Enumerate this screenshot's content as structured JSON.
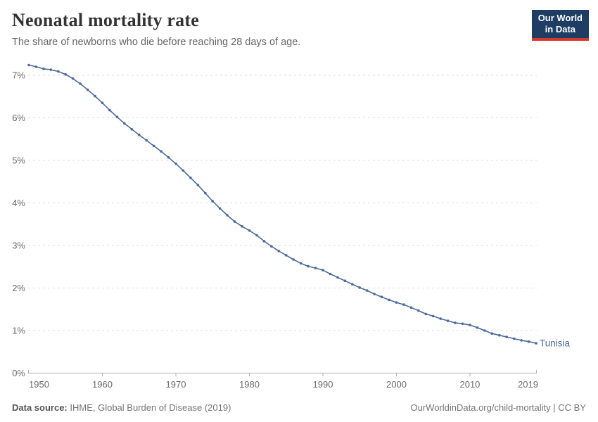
{
  "header": {
    "title": "Neonatal mortality rate",
    "subtitle": "The share of newborns who die before reaching 28 days of age.",
    "logo": {
      "line1": "Our World",
      "line2": "in Data"
    }
  },
  "chart_data": {
    "type": "line",
    "title": "Neonatal mortality rate",
    "xlabel": "",
    "ylabel": "",
    "grid": "horizontal-dashed",
    "legend_position": "end-of-line-label",
    "xlim": [
      1950,
      2019
    ],
    "ylim_percent": [
      0,
      7.45
    ],
    "x_ticks": [
      1950,
      1960,
      1970,
      1980,
      1990,
      2000,
      2010,
      2019
    ],
    "y_ticks": [
      0,
      1,
      2,
      3,
      4,
      5,
      6,
      7
    ],
    "y_tick_suffix": "%",
    "series": [
      {
        "name": "Tunisia",
        "end_label": "Tunisia",
        "color": "#4C6A9C",
        "years": [
          1950,
          1951,
          1952,
          1953,
          1954,
          1955,
          1956,
          1957,
          1958,
          1959,
          1960,
          1961,
          1962,
          1963,
          1964,
          1965,
          1966,
          1967,
          1968,
          1969,
          1970,
          1971,
          1972,
          1973,
          1974,
          1975,
          1976,
          1977,
          1978,
          1979,
          1980,
          1981,
          1982,
          1983,
          1984,
          1985,
          1986,
          1987,
          1988,
          1989,
          1990,
          1991,
          1992,
          1993,
          1994,
          1995,
          1996,
          1997,
          1998,
          1999,
          2000,
          2001,
          2002,
          2003,
          2004,
          2005,
          2006,
          2007,
          2008,
          2009,
          2010,
          2011,
          2012,
          2013,
          2014,
          2015,
          2016,
          2017,
          2018,
          2019
        ],
        "values_percent": [
          7.24,
          7.2,
          7.15,
          7.13,
          7.09,
          7.02,
          6.92,
          6.8,
          6.66,
          6.51,
          6.35,
          6.18,
          6.02,
          5.87,
          5.73,
          5.6,
          5.47,
          5.34,
          5.21,
          5.07,
          4.92,
          4.76,
          4.59,
          4.42,
          4.23,
          4.04,
          3.87,
          3.71,
          3.56,
          3.45,
          3.35,
          3.24,
          3.1,
          2.98,
          2.87,
          2.77,
          2.67,
          2.58,
          2.51,
          2.47,
          2.42,
          2.33,
          2.25,
          2.17,
          2.09,
          2.01,
          1.94,
          1.86,
          1.79,
          1.72,
          1.66,
          1.61,
          1.54,
          1.47,
          1.39,
          1.34,
          1.28,
          1.23,
          1.18,
          1.16,
          1.13,
          1.07,
          1.0,
          0.93,
          0.89,
          0.85,
          0.81,
          0.77,
          0.74,
          0.7
        ]
      }
    ]
  },
  "footer": {
    "source_label": "Data source:",
    "source_text": " IHME, Global Burden of Disease (2019)",
    "credit": "OurWorldinData.org/child-mortality | CC BY"
  },
  "colors": {
    "series_line": "#4C6A9C",
    "gridline": "#dddddd",
    "axis_line": "#b0b0b0",
    "tick_label": "#6b6b6b",
    "title": "#333333",
    "subtitle": "#666666",
    "footer_text": "#757575",
    "logo_background": "#1d3d63",
    "logo_accent": "#d7382d"
  }
}
